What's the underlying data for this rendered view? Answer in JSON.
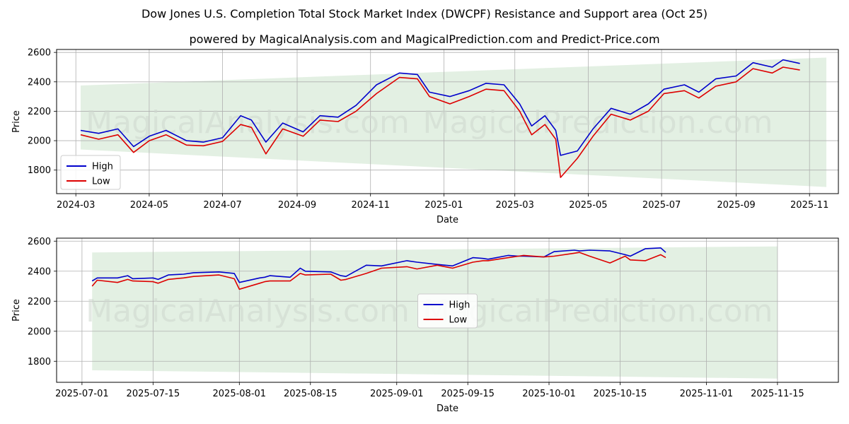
{
  "title": "Dow Jones U.S. Completion Total Stock Market Index (DWCPF) Resistance and Support area (Oct 25)",
  "subtitle": "powered by MagicalAnalysis.com and MagicalPrediction.com and Predict-Price.com",
  "watermarks": [
    "MagicalAnalysis.com",
    "MagicalPrediction.com"
  ],
  "colors": {
    "high": "#0000cc",
    "low": "#dd0000",
    "band": "#d9ebd9"
  },
  "chart_data": [
    {
      "type": "line",
      "xlabel": "Date",
      "ylabel": "Price",
      "xlim": [
        "2024-02-14",
        "2025-11-25"
      ],
      "ylim": [
        1640,
        2620
      ],
      "xticks": [
        "2024-03",
        "2024-05",
        "2024-07",
        "2024-09",
        "2024-11",
        "2025-01",
        "2025-03",
        "2025-05",
        "2025-07",
        "2025-09",
        "2025-11"
      ],
      "yticks": [
        1800,
        2000,
        2200,
        2400,
        2600
      ],
      "legend": "lower-left",
      "grid": true,
      "band": {
        "x": [
          "2024-03-05",
          "2025-11-15"
        ],
        "upper": [
          2375,
          2565
        ],
        "lower": [
          1940,
          1685
        ]
      },
      "series": [
        {
          "name": "High",
          "x": [
            "2024-03-05",
            "2024-03-20",
            "2024-04-05",
            "2024-04-18",
            "2024-05-01",
            "2024-05-15",
            "2024-06-01",
            "2024-06-15",
            "2024-07-01",
            "2024-07-16",
            "2024-07-25",
            "2024-08-06",
            "2024-08-20",
            "2024-09-06",
            "2024-09-20",
            "2024-10-05",
            "2024-10-20",
            "2024-11-06",
            "2024-11-25",
            "2024-12-10",
            "2024-12-20",
            "2025-01-06",
            "2025-01-22",
            "2025-02-05",
            "2025-02-20",
            "2025-03-05",
            "2025-03-15",
            "2025-03-26",
            "2025-04-04",
            "2025-04-08",
            "2025-04-22",
            "2025-05-05",
            "2025-05-20",
            "2025-06-05",
            "2025-06-20",
            "2025-07-03",
            "2025-07-20",
            "2025-08-01",
            "2025-08-15",
            "2025-09-01",
            "2025-09-15",
            "2025-10-01",
            "2025-10-10",
            "2025-10-24"
          ],
          "values": [
            2070,
            2050,
            2080,
            1960,
            2030,
            2070,
            2000,
            1990,
            2020,
            2170,
            2140,
            1990,
            2120,
            2060,
            2170,
            2160,
            2240,
            2380,
            2460,
            2450,
            2330,
            2300,
            2340,
            2390,
            2380,
            2250,
            2100,
            2170,
            2070,
            1900,
            1930,
            2080,
            2220,
            2180,
            2250,
            2350,
            2380,
            2330,
            2420,
            2440,
            2530,
            2500,
            2550,
            2525
          ]
        },
        {
          "name": "Low",
          "x": [
            "2024-03-05",
            "2024-03-20",
            "2024-04-05",
            "2024-04-18",
            "2024-05-01",
            "2024-05-15",
            "2024-06-01",
            "2024-06-15",
            "2024-07-01",
            "2024-07-16",
            "2024-07-25",
            "2024-08-06",
            "2024-08-20",
            "2024-09-06",
            "2024-09-20",
            "2024-10-05",
            "2024-10-20",
            "2024-11-06",
            "2024-11-25",
            "2024-12-10",
            "2024-12-20",
            "2025-01-06",
            "2025-01-22",
            "2025-02-05",
            "2025-02-20",
            "2025-03-05",
            "2025-03-15",
            "2025-03-26",
            "2025-04-04",
            "2025-04-08",
            "2025-04-22",
            "2025-05-05",
            "2025-05-20",
            "2025-06-05",
            "2025-06-20",
            "2025-07-03",
            "2025-07-20",
            "2025-08-01",
            "2025-08-15",
            "2025-09-01",
            "2025-09-15",
            "2025-10-01",
            "2025-10-10",
            "2025-10-24"
          ],
          "values": [
            2040,
            2010,
            2040,
            1920,
            2000,
            2040,
            1970,
            1965,
            1995,
            2110,
            2090,
            1910,
            2080,
            2030,
            2140,
            2130,
            2200,
            2320,
            2430,
            2420,
            2300,
            2250,
            2300,
            2350,
            2340,
            2200,
            2040,
            2110,
            2010,
            1750,
            1880,
            2030,
            2180,
            2140,
            2200,
            2320,
            2340,
            2290,
            2370,
            2400,
            2490,
            2460,
            2500,
            2480
          ]
        }
      ]
    },
    {
      "type": "line",
      "xlabel": "Date",
      "ylabel": "Price",
      "xlim": [
        "2025-06-26",
        "2025-11-27"
      ],
      "ylim": [
        1660,
        2620
      ],
      "xticks": [
        "2025-07-01",
        "2025-07-15",
        "2025-08-01",
        "2025-08-15",
        "2025-09-01",
        "2025-09-15",
        "2025-10-01",
        "2025-10-15",
        "2025-11-01",
        "2025-11-15"
      ],
      "yticks": [
        1800,
        2000,
        2200,
        2400,
        2600
      ],
      "legend": "center",
      "grid": true,
      "band": {
        "x": [
          "2025-07-03",
          "2025-11-15"
        ],
        "upper": [
          2525,
          2565
        ],
        "lower": [
          1740,
          1685
        ]
      },
      "series": [
        {
          "name": "High",
          "x": [
            "2025-07-03",
            "2025-07-04",
            "2025-07-08",
            "2025-07-10",
            "2025-07-11",
            "2025-07-15",
            "2025-07-16",
            "2025-07-18",
            "2025-07-21",
            "2025-07-23",
            "2025-07-28",
            "2025-07-31",
            "2025-08-01",
            "2025-08-05",
            "2025-08-06",
            "2025-08-07",
            "2025-08-11",
            "2025-08-13",
            "2025-08-14",
            "2025-08-19",
            "2025-08-21",
            "2025-08-22",
            "2025-08-26",
            "2025-08-29",
            "2025-09-03",
            "2025-09-05",
            "2025-09-09",
            "2025-09-12",
            "2025-09-16",
            "2025-09-18",
            "2025-09-19",
            "2025-09-23",
            "2025-09-25",
            "2025-09-26",
            "2025-09-30",
            "2025-10-02",
            "2025-10-06",
            "2025-10-07",
            "2025-10-09",
            "2025-10-13",
            "2025-10-16",
            "2025-10-17",
            "2025-10-20",
            "2025-10-23",
            "2025-10-24"
          ],
          "values": [
            2335,
            2355,
            2355,
            2370,
            2350,
            2355,
            2345,
            2375,
            2380,
            2390,
            2395,
            2385,
            2325,
            2355,
            2360,
            2370,
            2360,
            2420,
            2400,
            2395,
            2370,
            2365,
            2440,
            2435,
            2470,
            2460,
            2445,
            2435,
            2490,
            2485,
            2480,
            2505,
            2500,
            2500,
            2495,
            2530,
            2540,
            2535,
            2540,
            2535,
            2510,
            2500,
            2550,
            2555,
            2525
          ]
        },
        {
          "name": "Low",
          "x": [
            "2025-07-03",
            "2025-07-04",
            "2025-07-08",
            "2025-07-10",
            "2025-07-11",
            "2025-07-15",
            "2025-07-16",
            "2025-07-18",
            "2025-07-21",
            "2025-07-23",
            "2025-07-28",
            "2025-07-31",
            "2025-08-01",
            "2025-08-05",
            "2025-08-06",
            "2025-08-07",
            "2025-08-11",
            "2025-08-13",
            "2025-08-14",
            "2025-08-19",
            "2025-08-21",
            "2025-08-22",
            "2025-08-26",
            "2025-08-29",
            "2025-09-03",
            "2025-09-05",
            "2025-09-09",
            "2025-09-12",
            "2025-09-16",
            "2025-09-18",
            "2025-09-19",
            "2025-09-23",
            "2025-09-25",
            "2025-09-26",
            "2025-09-30",
            "2025-10-02",
            "2025-10-06",
            "2025-10-07",
            "2025-10-09",
            "2025-10-13",
            "2025-10-16",
            "2025-10-17",
            "2025-10-20",
            "2025-10-23",
            "2025-10-24"
          ],
          "values": [
            2300,
            2340,
            2325,
            2345,
            2335,
            2330,
            2320,
            2345,
            2355,
            2365,
            2375,
            2350,
            2280,
            2320,
            2330,
            2335,
            2335,
            2385,
            2375,
            2380,
            2340,
            2345,
            2385,
            2420,
            2430,
            2415,
            2440,
            2420,
            2460,
            2470,
            2470,
            2490,
            2500,
            2505,
            2495,
            2500,
            2520,
            2525,
            2500,
            2455,
            2500,
            2475,
            2470,
            2510,
            2490
          ]
        }
      ]
    }
  ]
}
